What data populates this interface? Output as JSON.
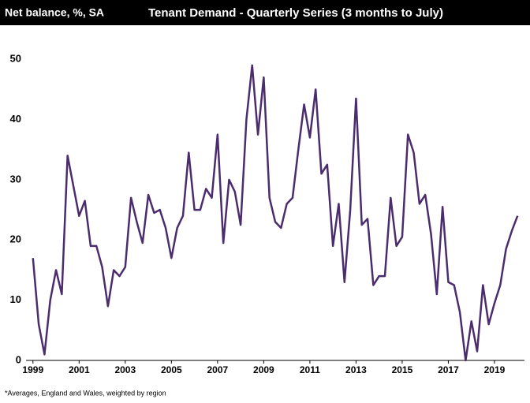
{
  "chart_data": {
    "type": "line",
    "header_label": "Net balance, %, SA",
    "title": "Tenant Demand - Quarterly Series (3 months to July)",
    "footnote": "*Averages,  England and Wales, weighted by region",
    "x": [
      1999,
      1999.25,
      1999.5,
      1999.75,
      2000,
      2000.25,
      2000.5,
      2000.75,
      2001,
      2001.25,
      2001.5,
      2001.75,
      2002,
      2002.25,
      2002.5,
      2002.75,
      2003,
      2003.25,
      2003.5,
      2003.75,
      2004,
      2004.25,
      2004.5,
      2004.75,
      2005,
      2005.25,
      2005.5,
      2005.75,
      2006,
      2006.25,
      2006.5,
      2006.75,
      2007,
      2007.25,
      2007.5,
      2007.75,
      2008,
      2008.25,
      2008.5,
      2008.75,
      2009,
      2009.25,
      2009.5,
      2009.75,
      2010,
      2010.25,
      2010.5,
      2010.75,
      2011,
      2011.25,
      2011.5,
      2011.75,
      2012,
      2012.25,
      2012.5,
      2012.75,
      2013,
      2013.25,
      2013.5,
      2013.75,
      2014,
      2014.25,
      2014.5,
      2014.75,
      2015,
      2015.25,
      2015.5,
      2015.75,
      2016,
      2016.25,
      2016.5,
      2016.75,
      2017,
      2017.25,
      2017.5,
      2017.75,
      2018,
      2018.25,
      2018.5,
      2018.75,
      2019,
      2019.25,
      2019.5,
      2019.75,
      2020
    ],
    "series": [
      {
        "color": "#4b2d6e",
        "values": [
          17,
          6,
          1,
          10,
          15,
          11,
          34,
          29,
          24,
          26.5,
          19,
          19,
          15.5,
          9,
          15,
          14,
          15.5,
          27,
          23,
          19.5,
          27.5,
          24.5,
          25,
          22,
          17,
          22,
          24,
          34.5,
          25,
          25,
          28.5,
          27,
          37.5,
          19.5,
          30,
          28,
          22.5,
          40,
          49,
          37.5,
          47,
          27,
          23,
          22,
          26,
          27,
          35,
          42.5,
          37,
          45,
          31,
          32.5,
          19,
          26,
          13,
          25,
          43.5,
          22.5,
          23.5,
          12.5,
          14,
          14,
          27,
          19,
          20.5,
          37.5,
          34.5,
          26,
          27.5,
          21,
          11,
          25.5,
          13,
          12.5,
          8,
          0,
          6.5,
          1.5,
          12.5,
          6,
          9.5,
          12.5,
          18.5,
          21.5,
          24
        ]
      }
    ],
    "xlim": [
      1998.7,
      2020.3
    ],
    "xticks": [
      1999,
      2001,
      2003,
      2005,
      2007,
      2009,
      2011,
      2013,
      2015,
      2017,
      2019
    ],
    "ylim": [
      0,
      55
    ],
    "yticks": [
      0,
      10,
      20,
      30,
      40,
      50
    ],
    "grid": false
  }
}
